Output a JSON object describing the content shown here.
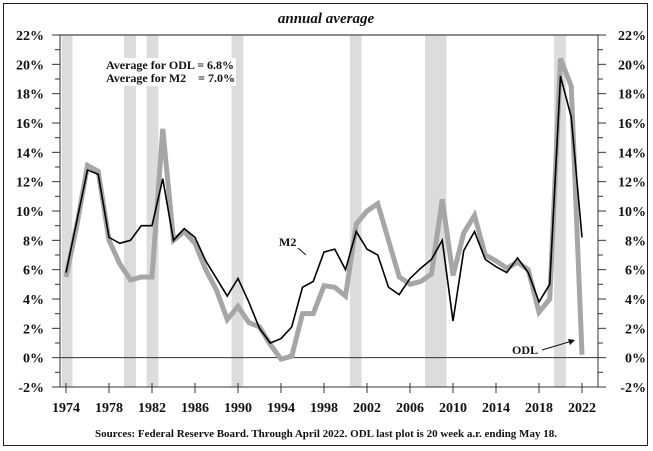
{
  "chart_data": {
    "type": "line",
    "title": "annual average",
    "source": "Sources: Federal Reserve Board. Through April 2022. ODL last plot is 20 week a.r. ending May 18.",
    "annotations": [
      "Average for ODL = 6.8%",
      "Average for M2    = 7.0%"
    ],
    "ylim": [
      -2,
      22
    ],
    "yticks": [
      -2,
      0,
      2,
      4,
      6,
      8,
      10,
      12,
      14,
      16,
      18,
      20,
      22
    ],
    "ytick_labels": [
      "-2%",
      "0%",
      "2%",
      "4%",
      "6%",
      "8%",
      "10%",
      "12%",
      "14%",
      "16%",
      "18%",
      "20%",
      "22%"
    ],
    "xlim": [
      1973,
      2024
    ],
    "xticks": [
      1974,
      1978,
      1982,
      1986,
      1990,
      1994,
      1998,
      2002,
      2006,
      2010,
      2014,
      2018,
      2022
    ],
    "xtick_labels": [
      "1974",
      "1978",
      "1982",
      "1986",
      "1990",
      "1994",
      "1998",
      "2002",
      "2006",
      "2010",
      "2014",
      "2018",
      "2022"
    ],
    "grid": false,
    "recessions": [
      [
        1973.6,
        1974.6
      ],
      [
        1979.4,
        1980.5
      ],
      [
        1981.5,
        1982.6
      ],
      [
        1989.4,
        1990.5
      ],
      [
        2000.4,
        2001.5
      ],
      [
        2007.4,
        2009.4
      ],
      [
        2019.4,
        2020.5
      ]
    ],
    "x": [
      1974,
      1975,
      1976,
      1977,
      1978,
      1979,
      1980,
      1981,
      1982,
      1983,
      1984,
      1985,
      1986,
      1987,
      1988,
      1989,
      1990,
      1991,
      1992,
      1993,
      1994,
      1995,
      1996,
      1997,
      1998,
      1999,
      2000,
      2001,
      2002,
      2003,
      2004,
      2005,
      2006,
      2007,
      2008,
      2009,
      2010,
      2011,
      2012,
      2013,
      2014,
      2015,
      2016,
      2017,
      2018,
      2019,
      2020,
      2021,
      2022
    ],
    "series": [
      {
        "name": "ODL",
        "color": "#a6a6a6",
        "values": [
          5.5,
          9.0,
          13.1,
          12.7,
          8.0,
          6.4,
          5.3,
          5.5,
          5.5,
          15.6,
          8.0,
          8.6,
          7.8,
          6.0,
          4.6,
          2.6,
          3.5,
          2.4,
          2.1,
          0.9,
          -0.1,
          0.1,
          3.0,
          3.0,
          4.9,
          4.8,
          4.2,
          9.1,
          10.0,
          10.5,
          8.0,
          5.5,
          5.0,
          5.2,
          5.7,
          10.8,
          5.6,
          8.5,
          9.7,
          7.0,
          6.6,
          6.1,
          6.5,
          6.0,
          3.1,
          4.0,
          20.4,
          18.5,
          0.2
        ]
      },
      {
        "name": "M2",
        "color": "#000000",
        "values": [
          5.8,
          9.3,
          12.8,
          12.5,
          8.2,
          7.8,
          8.0,
          9.0,
          9.0,
          12.2,
          8.0,
          8.8,
          8.2,
          6.6,
          5.4,
          4.2,
          5.4,
          3.8,
          2.0,
          1.0,
          1.3,
          2.1,
          4.8,
          5.2,
          7.2,
          7.4,
          6.0,
          8.6,
          7.4,
          7.0,
          4.8,
          4.3,
          5.4,
          6.1,
          6.7,
          8.0,
          2.5,
          7.3,
          8.6,
          6.7,
          6.2,
          5.8,
          6.8,
          5.8,
          3.8,
          5.0,
          19.2,
          16.4,
          8.2
        ]
      }
    ]
  }
}
